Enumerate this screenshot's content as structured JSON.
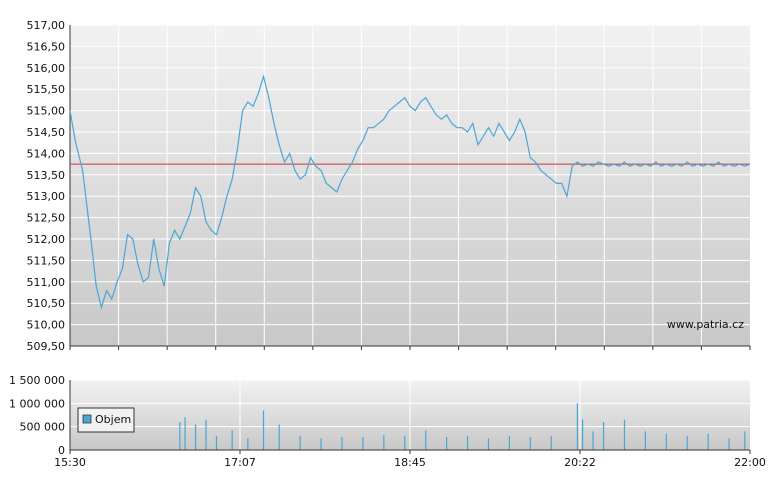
{
  "chart_data": [
    {
      "type": "line",
      "title": "",
      "xlabel": "",
      "ylabel": "",
      "ylim": [
        509.5,
        517.0
      ],
      "yticks": [
        "517,00",
        "516,50",
        "516,00",
        "515,50",
        "515,00",
        "514,50",
        "514,00",
        "513,50",
        "513,00",
        "512,50",
        "512,00",
        "511,50",
        "511,00",
        "510,50",
        "510,00",
        "509,50"
      ],
      "ytick_values": [
        517.0,
        516.5,
        516.0,
        515.5,
        515.0,
        514.5,
        514.0,
        513.5,
        513.0,
        512.5,
        512.0,
        511.5,
        511.0,
        510.5,
        510.0,
        509.5
      ],
      "reference_line": 513.75,
      "reference_color": "#cc3333",
      "line_color": "#4aa6d6",
      "watermark": "www.patria.cz",
      "x_range_hours": [
        15.5,
        22.0
      ],
      "x_hours": [
        15.5,
        15.55,
        15.62,
        15.7,
        15.75,
        15.8,
        15.85,
        15.9,
        15.95,
        16.0,
        16.05,
        16.1,
        16.15,
        16.2,
        16.25,
        16.3,
        16.35,
        16.4,
        16.45,
        16.5,
        16.55,
        16.6,
        16.65,
        16.7,
        16.75,
        16.8,
        16.85,
        16.9,
        16.95,
        17.0,
        17.05,
        17.1,
        17.15,
        17.2,
        17.25,
        17.3,
        17.35,
        17.4,
        17.45,
        17.5,
        17.55,
        17.6,
        17.65,
        17.7,
        17.75,
        17.8,
        17.85,
        17.9,
        17.95,
        18.0,
        18.05,
        18.1,
        18.15,
        18.2,
        18.25,
        18.3,
        18.35,
        18.4,
        18.45,
        18.5,
        18.55,
        18.6,
        18.65,
        18.7,
        18.75,
        18.8,
        18.85,
        18.9,
        18.95,
        19.0,
        19.05,
        19.1,
        19.15,
        19.2,
        19.25,
        19.3,
        19.35,
        19.4,
        19.45,
        19.5,
        19.55,
        19.6,
        19.65,
        19.7,
        19.75,
        19.8,
        19.85,
        19.9,
        19.95,
        20.0,
        20.05,
        20.1,
        20.15,
        20.2,
        20.25,
        20.3,
        20.35,
        20.4,
        20.45,
        20.5,
        20.55,
        20.6,
        20.65,
        20.7,
        20.75,
        20.8,
        20.85,
        20.9,
        20.95,
        21.0,
        21.05,
        21.1,
        21.15,
        21.2,
        21.25,
        21.3,
        21.35,
        21.4,
        21.45,
        21.5,
        21.55,
        21.6,
        21.65,
        21.7,
        21.75,
        21.8,
        21.85,
        21.9,
        21.95,
        22.0
      ],
      "values": [
        515.0,
        514.3,
        513.6,
        512.0,
        510.9,
        510.4,
        510.8,
        510.6,
        511.0,
        511.3,
        512.1,
        512.0,
        511.4,
        511.0,
        511.1,
        512.0,
        511.3,
        510.9,
        511.9,
        512.2,
        512.0,
        512.3,
        512.6,
        513.2,
        513.0,
        512.4,
        512.2,
        512.1,
        512.5,
        513.0,
        513.4,
        514.1,
        515.0,
        515.2,
        515.1,
        515.4,
        515.8,
        515.3,
        514.7,
        514.2,
        513.8,
        514.0,
        513.6,
        513.4,
        513.5,
        513.9,
        513.7,
        513.6,
        513.3,
        513.2,
        513.1,
        513.4,
        513.6,
        513.8,
        514.1,
        514.3,
        514.6,
        514.6,
        514.7,
        514.8,
        515.0,
        515.1,
        515.2,
        515.3,
        515.1,
        515.0,
        515.2,
        515.3,
        515.1,
        514.9,
        514.8,
        514.9,
        514.7,
        514.6,
        514.6,
        514.5,
        514.7,
        514.2,
        514.4,
        514.6,
        514.4,
        514.7,
        514.5,
        514.3,
        514.5,
        514.8,
        514.5,
        513.9,
        513.8,
        513.6,
        513.5,
        513.4,
        513.3,
        513.3,
        513.0,
        513.7,
        513.8,
        513.7,
        513.75,
        513.7,
        513.8,
        513.75,
        513.7,
        513.75,
        513.7,
        513.8,
        513.7,
        513.75,
        513.7,
        513.75,
        513.7,
        513.8,
        513.7,
        513.75,
        513.7,
        513.75,
        513.7,
        513.8,
        513.7,
        513.75,
        513.7,
        513.75,
        513.7,
        513.8,
        513.7,
        513.75,
        513.7,
        513.75,
        513.7,
        513.75
      ]
    },
    {
      "type": "bar",
      "title": "",
      "legend": [
        "Objem"
      ],
      "legend_placement": "left",
      "ylim": [
        0,
        1500000
      ],
      "yticks": [
        "1 500 000",
        "1 000 000",
        "500 000",
        "0"
      ],
      "ytick_values": [
        1500000,
        1000000,
        500000,
        0
      ],
      "xticks": [
        "15:30",
        "17:07",
        "18:45",
        "20:22",
        "22:00"
      ],
      "bar_color": "#4aa6d6",
      "x_hours": [
        16.55,
        16.6,
        16.7,
        16.8,
        16.9,
        17.05,
        17.2,
        17.35,
        17.5,
        17.7,
        17.9,
        18.1,
        18.3,
        18.5,
        18.7,
        18.9,
        19.1,
        19.3,
        19.5,
        19.7,
        19.9,
        20.1,
        20.35,
        20.4,
        20.5,
        20.6,
        20.8,
        21.0,
        21.2,
        21.4,
        21.6,
        21.8,
        21.95
      ],
      "values": [
        600000,
        700000,
        550000,
        650000,
        300000,
        420000,
        250000,
        850000,
        550000,
        300000,
        250000,
        280000,
        280000,
        320000,
        300000,
        420000,
        280000,
        300000,
        250000,
        300000,
        280000,
        300000,
        1000000,
        650000,
        400000,
        600000,
        650000,
        400000,
        350000,
        300000,
        350000,
        250000,
        400000
      ]
    }
  ]
}
